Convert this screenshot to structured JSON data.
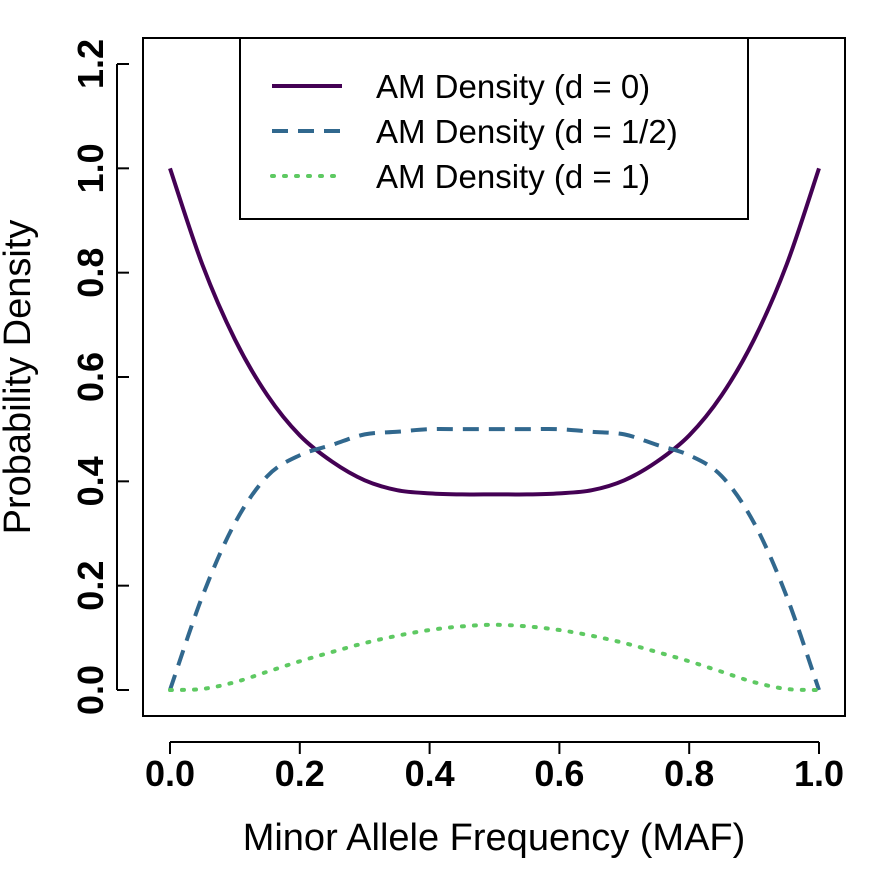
{
  "chart_data": {
    "type": "line",
    "title": "",
    "xlabel": "Minor Allele Frequency (MAF)",
    "ylabel": "Probability Density",
    "xlim": [
      0,
      1
    ],
    "ylim": [
      0,
      1.2
    ],
    "x_ticks": [
      0.0,
      0.2,
      0.4,
      0.6,
      0.8,
      1.0
    ],
    "x_tick_labels": [
      "0.0",
      "0.2",
      "0.4",
      "0.6",
      "0.8",
      "1.0"
    ],
    "y_ticks": [
      0.0,
      0.2,
      0.4,
      0.6,
      0.8,
      1.0,
      1.2
    ],
    "y_tick_labels": [
      "0.0",
      "0.2",
      "0.4",
      "0.6",
      "0.8",
      "1.0",
      "1.2"
    ],
    "grid": false,
    "legend_position": "top",
    "x": [
      0.0,
      0.05,
      0.1,
      0.15,
      0.2,
      0.25,
      0.3,
      0.35,
      0.4,
      0.45,
      0.5,
      0.55,
      0.6,
      0.65,
      0.7,
      0.75,
      0.8,
      0.85,
      0.9,
      0.95,
      1.0
    ],
    "series": [
      {
        "name": "AM Density (d = 0)",
        "color": "#440154",
        "dash": "solid",
        "values": [
          1.0,
          0.815,
          0.672,
          0.565,
          0.488,
          0.4375,
          0.402,
          0.383,
          0.377,
          0.375,
          0.375,
          0.375,
          0.377,
          0.383,
          0.402,
          0.4375,
          0.488,
          0.565,
          0.672,
          0.815,
          1.0
        ]
      },
      {
        "name": "AM Density (d = 1/2)",
        "color": "#31688e",
        "dash": "dashed",
        "values": [
          0.0,
          0.18,
          0.32,
          0.41,
          0.45,
          0.47,
          0.49,
          0.495,
          0.5,
          0.5,
          0.5,
          0.5,
          0.5,
          0.495,
          0.49,
          0.47,
          0.45,
          0.41,
          0.32,
          0.18,
          0.0
        ]
      },
      {
        "name": "AM Density (d = 1)",
        "color": "#5ec962",
        "dash": "dotted",
        "values": [
          0.0,
          0.002,
          0.015,
          0.035,
          0.055,
          0.073,
          0.09,
          0.104,
          0.115,
          0.122,
          0.125,
          0.122,
          0.115,
          0.104,
          0.09,
          0.073,
          0.055,
          0.035,
          0.015,
          0.002,
          0.0
        ]
      }
    ]
  }
}
